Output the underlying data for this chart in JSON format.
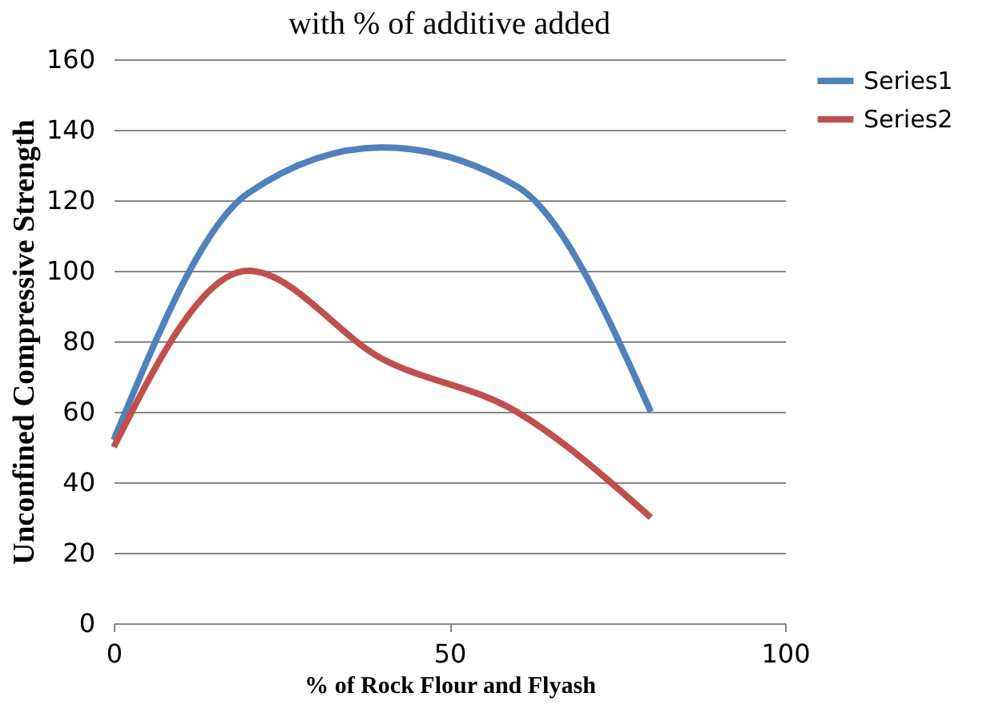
{
  "chart_data": {
    "type": "line",
    "title": "with % of additive added",
    "xlabel": "% of Rock Flour and Flyash",
    "ylabel": "Unconfined Compressive Strength",
    "x": [
      0,
      20,
      40,
      60,
      80
    ],
    "series": [
      {
        "name": "Series1",
        "color": "#4f81bd",
        "values": [
          52,
          122,
          135,
          124,
          60
        ]
      },
      {
        "name": "Series2",
        "color": "#c0504d",
        "values": [
          50,
          100,
          75,
          60,
          30
        ]
      }
    ],
    "xlim": [
      0,
      100
    ],
    "xticks": [
      0,
      50,
      100
    ],
    "ylim": [
      0,
      160
    ],
    "yticks": [
      0,
      20,
      40,
      60,
      80,
      100,
      120,
      140,
      160
    ],
    "grid": "y",
    "legend": "right",
    "marker": "none",
    "line_style": "solid"
  }
}
